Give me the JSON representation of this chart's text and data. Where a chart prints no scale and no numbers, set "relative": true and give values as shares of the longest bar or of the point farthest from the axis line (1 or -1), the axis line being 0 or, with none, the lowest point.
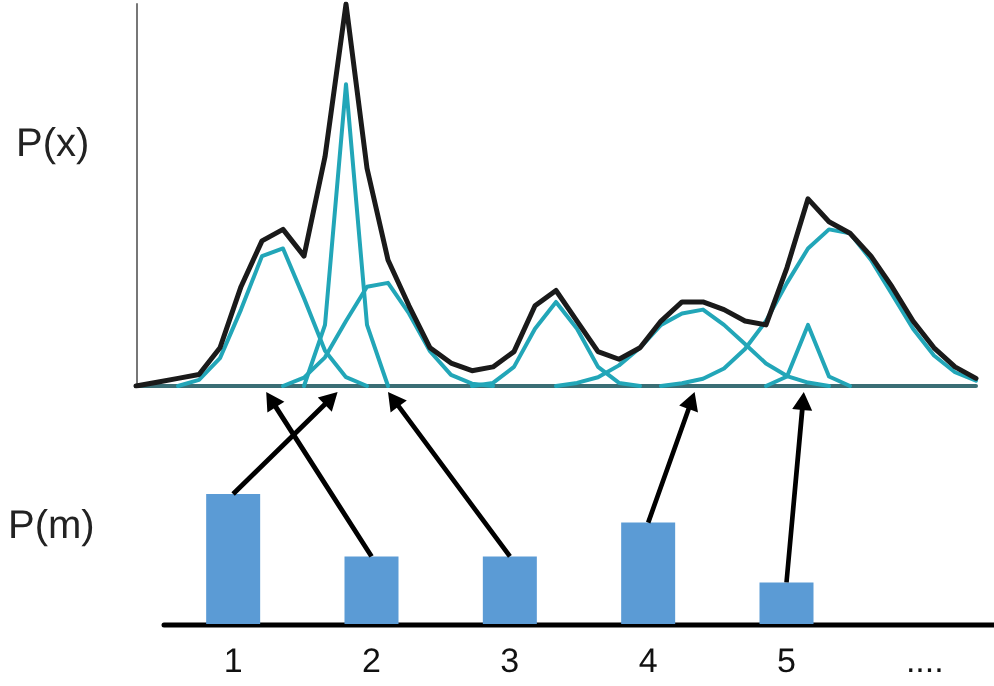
{
  "chart_data": [
    {
      "type": "line",
      "relative": true,
      "ylabel": "P(x)",
      "tick_labels": false,
      "marker": "none",
      "categories": [
        null,
        null,
        null,
        null,
        null,
        null,
        null,
        null,
        null,
        null,
        null,
        null,
        null,
        null,
        null,
        null,
        null,
        null,
        null,
        null,
        null,
        null,
        null,
        null,
        null,
        null,
        null,
        null,
        null,
        null,
        null,
        null,
        null,
        null,
        null,
        null,
        null,
        null,
        null,
        null,
        null
      ],
      "series": [
        {
          "color": "#1a1a1a",
          "values": [
            0.0,
            0.01,
            0.02,
            0.03,
            0.1,
            0.26,
            0.38,
            0.41,
            0.34,
            0.6,
            1.0,
            0.57,
            0.33,
            0.21,
            0.1,
            0.06,
            0.04,
            0.05,
            0.09,
            0.21,
            0.25,
            0.17,
            0.09,
            0.07,
            0.1,
            0.17,
            0.22,
            0.22,
            0.2,
            0.17,
            0.16,
            0.31,
            0.49,
            0.43,
            0.4,
            0.34,
            0.26,
            0.17,
            0.1,
            0.05,
            0.02
          ]
        },
        {
          "color": "#22a6b8",
          "values": [
            null,
            null,
            0,
            0.016,
            0.073,
            0.2,
            0.34,
            0.36,
            0.23,
            0.092,
            0.023,
            0,
            null,
            null,
            null,
            null,
            null,
            null,
            null,
            null,
            null,
            null,
            null,
            null,
            null,
            null,
            null,
            null,
            null,
            null,
            null,
            null,
            null,
            null,
            null,
            null,
            null,
            null,
            null,
            null,
            null
          ]
        },
        {
          "color": "#22a6b8",
          "values": [
            null,
            null,
            null,
            null,
            null,
            null,
            null,
            null,
            0,
            0.16,
            0.79,
            0.16,
            0,
            null,
            null,
            null,
            null,
            null,
            null,
            null,
            null,
            null,
            null,
            null,
            null,
            null,
            null,
            null,
            null,
            null,
            null,
            null,
            null,
            null,
            null,
            null,
            null,
            null,
            null,
            null,
            null
          ]
        },
        {
          "color": "#22a6b8",
          "values": [
            null,
            null,
            null,
            null,
            null,
            null,
            null,
            0,
            0.022,
            0.075,
            0.17,
            0.26,
            0.27,
            0.19,
            0.091,
            0.029,
            0.006,
            0,
            null,
            null,
            null,
            null,
            null,
            null,
            null,
            null,
            null,
            null,
            null,
            null,
            null,
            null,
            null,
            null,
            null,
            null,
            null,
            null,
            null,
            null,
            null
          ]
        },
        {
          "color": "#22a6b8",
          "values": [
            null,
            null,
            null,
            null,
            null,
            null,
            null,
            null,
            null,
            null,
            null,
            null,
            null,
            null,
            null,
            null,
            0,
            0.008,
            0.05,
            0.15,
            0.22,
            0.15,
            0.05,
            0.008,
            0,
            null,
            null,
            null,
            null,
            null,
            null,
            null,
            null,
            null,
            null,
            null,
            null,
            null,
            null,
            null,
            null
          ]
        },
        {
          "color": "#22a6b8",
          "values": [
            null,
            null,
            null,
            null,
            null,
            null,
            null,
            null,
            null,
            null,
            null,
            null,
            null,
            null,
            null,
            null,
            null,
            null,
            null,
            null,
            0,
            0.008,
            0.023,
            0.054,
            0.1,
            0.16,
            0.19,
            0.2,
            0.16,
            0.11,
            0.059,
            0.026,
            0.009,
            0,
            null,
            null,
            null,
            null,
            null,
            null,
            null
          ]
        },
        {
          "color": "#22a6b8",
          "values": [
            null,
            null,
            null,
            null,
            null,
            null,
            null,
            null,
            null,
            null,
            null,
            null,
            null,
            null,
            null,
            null,
            null,
            null,
            null,
            null,
            null,
            null,
            null,
            null,
            null,
            null,
            null,
            null,
            null,
            null,
            0,
            0.025,
            0.16,
            0.025,
            0,
            null,
            null,
            null,
            null,
            null,
            null
          ]
        },
        {
          "color": "#22a6b8",
          "values": [
            null,
            null,
            null,
            null,
            null,
            null,
            null,
            null,
            null,
            null,
            null,
            null,
            null,
            null,
            null,
            null,
            null,
            null,
            null,
            null,
            null,
            null,
            null,
            null,
            null,
            0,
            0.007,
            0.019,
            0.046,
            0.097,
            0.17,
            0.27,
            0.36,
            0.41,
            0.4,
            0.33,
            0.24,
            0.15,
            0.08,
            0.036,
            0.014
          ]
        }
      ]
    },
    {
      "type": "bar",
      "relative": true,
      "ylabel": "P(m)",
      "tick_labels": "x",
      "categories": [
        "1",
        "2",
        "3",
        "4",
        "5",
        "...."
      ],
      "values": [
        1,
        0.52,
        0.52,
        0.78,
        0.32,
        null
      ],
      "color": "#5b9bd5"
    }
  ]
}
